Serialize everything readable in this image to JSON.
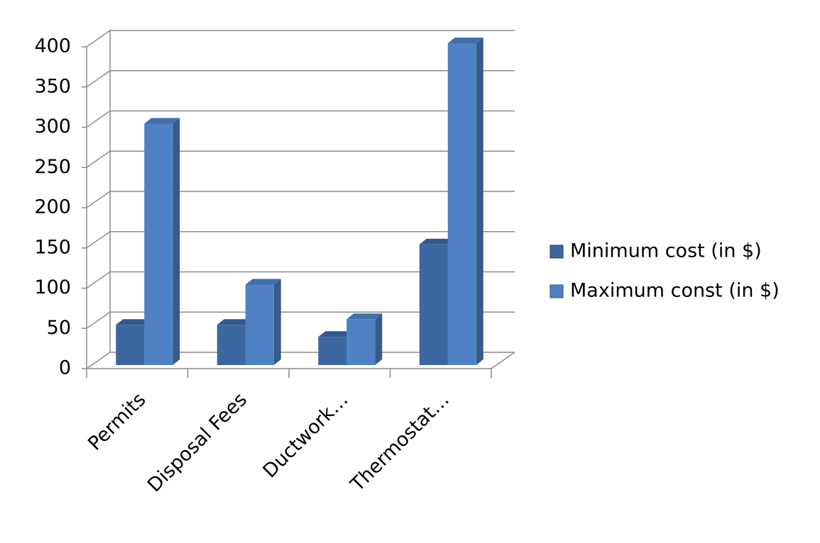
{
  "chart_data": {
    "type": "bar3d",
    "categories": [
      "Permits",
      "Disposal Fees",
      "Ductwork…",
      "Thermostat…"
    ],
    "series": [
      {
        "name": "Minimum cost (in $)",
        "color": "#3d67a0",
        "values": [
          50,
          50,
          35,
          150
        ]
      },
      {
        "name": "Maximum const (in $)",
        "color": "#4f81c4",
        "values": [
          300,
          100,
          57,
          400
        ]
      }
    ],
    "ylim": [
      0,
      400
    ],
    "yticks": [
      0,
      50,
      100,
      150,
      200,
      250,
      300,
      350,
      400
    ],
    "grid": true,
    "legend": "right"
  }
}
